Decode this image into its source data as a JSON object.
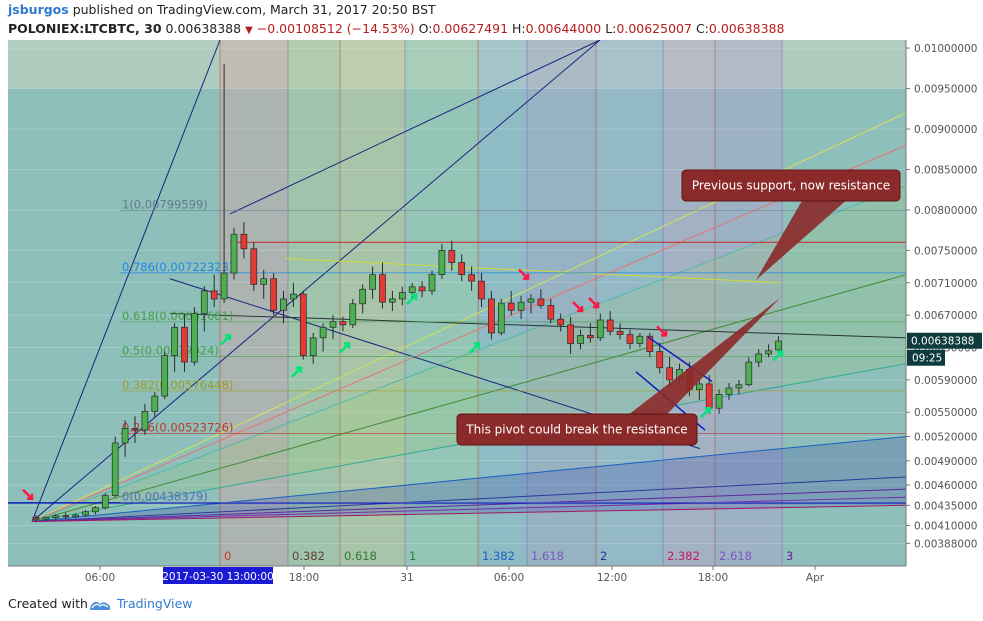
{
  "header": {
    "author": "jsburgos",
    "published_text": "published on TradingView.com, March 31, 2017 20:50 BST",
    "symbol": "POLONIEX:LTCBTC, 30",
    "last": "0.00638388",
    "change": "−0.00108512 (−14.53%)",
    "o_label": "O:",
    "o_value": "0.00627491",
    "h_label": "H:",
    "h_value": "0.00644000",
    "l_label": "L:",
    "l_value": "0.00625007",
    "c_label": "C:",
    "c_value": "0.00638388"
  },
  "footer": {
    "created": "Created with",
    "brand": "TradingView"
  },
  "colors": {
    "bull": "#4caf50",
    "bear": "#e53935",
    "price_tag": "#0d3b3e",
    "time_tag": "#1a1ad4"
  },
  "chart_data": {
    "type": "candlestick",
    "title": "POLONIEX:LTCBTC, 30",
    "y_axis": {
      "ylim": [
        0.0036,
        0.0101
      ],
      "ticks": [
        "0.01000000",
        "0.00950000",
        "0.00900000",
        "0.00850000",
        "0.00800000",
        "0.00750000",
        "0.00710000",
        "0.00670000",
        "0.00630000",
        "0.00590000",
        "0.00550000",
        "0.00520000",
        "0.00490000",
        "0.00460000",
        "0.00435000",
        "0.00410000",
        "0.00388000"
      ]
    },
    "x_axis": {
      "ticks": [
        "06:00",
        "18:00",
        "31",
        "06:00",
        "12:00",
        "18:00",
        "Apr"
      ],
      "highlight": "2017-03-30 13:00:00"
    },
    "last_price": {
      "value": "0.00638388",
      "countdown": "09:25"
    },
    "candles_ohlc": [
      [
        0.0042,
        0.00423,
        0.00414,
        0.00418
      ],
      [
        0.00418,
        0.00421,
        0.00415,
        0.0042
      ],
      [
        0.0042,
        0.00424,
        0.00417,
        0.00422
      ],
      [
        0.00422,
        0.00426,
        0.00418,
        0.00421
      ],
      [
        0.00421,
        0.00425,
        0.00419,
        0.00423
      ],
      [
        0.00423,
        0.00429,
        0.00421,
        0.00427
      ],
      [
        0.00427,
        0.00434,
        0.00424,
        0.00432
      ],
      [
        0.00432,
        0.0045,
        0.0043,
        0.00447
      ],
      [
        0.00447,
        0.0052,
        0.00445,
        0.00512
      ],
      [
        0.00512,
        0.0054,
        0.00495,
        0.0053
      ],
      [
        0.0053,
        0.00545,
        0.00512,
        0.00528
      ],
      [
        0.00528,
        0.0056,
        0.00522,
        0.00551
      ],
      [
        0.00551,
        0.00575,
        0.00544,
        0.0057
      ],
      [
        0.0057,
        0.00625,
        0.00566,
        0.0062
      ],
      [
        0.0062,
        0.0066,
        0.006,
        0.00655
      ],
      [
        0.00655,
        0.00672,
        0.006,
        0.00612
      ],
      [
        0.00612,
        0.0068,
        0.00608,
        0.00672
      ],
      [
        0.00672,
        0.00706,
        0.0065,
        0.007
      ],
      [
        0.007,
        0.0072,
        0.0068,
        0.0069
      ],
      [
        0.0069,
        0.0098,
        0.00685,
        0.00722
      ],
      [
        0.00722,
        0.00778,
        0.00714,
        0.0077
      ],
      [
        0.0077,
        0.00785,
        0.0074,
        0.00752
      ],
      [
        0.00752,
        0.0076,
        0.007,
        0.00708
      ],
      [
        0.00708,
        0.00726,
        0.0069,
        0.00715
      ],
      [
        0.00715,
        0.00722,
        0.0067,
        0.00676
      ],
      [
        0.00676,
        0.007,
        0.0066,
        0.0069
      ],
      [
        0.0069,
        0.0071,
        0.0068,
        0.00696
      ],
      [
        0.00696,
        0.007,
        0.00615,
        0.0062
      ],
      [
        0.0062,
        0.00648,
        0.0061,
        0.00642
      ],
      [
        0.00642,
        0.0066,
        0.00625,
        0.00655
      ],
      [
        0.00655,
        0.0067,
        0.0064,
        0.00662
      ],
      [
        0.00662,
        0.00668,
        0.0065,
        0.00658
      ],
      [
        0.00658,
        0.0069,
        0.00654,
        0.00684
      ],
      [
        0.00684,
        0.00708,
        0.00672,
        0.00702
      ],
      [
        0.00702,
        0.0073,
        0.0069,
        0.0072
      ],
      [
        0.0072,
        0.00735,
        0.00678,
        0.00686
      ],
      [
        0.00686,
        0.007,
        0.00675,
        0.0069
      ],
      [
        0.0069,
        0.00705,
        0.00682,
        0.00698
      ],
      [
        0.00698,
        0.0071,
        0.0069,
        0.00705
      ],
      [
        0.00705,
        0.00712,
        0.00692,
        0.007
      ],
      [
        0.007,
        0.00725,
        0.00695,
        0.0072
      ],
      [
        0.0072,
        0.00758,
        0.00715,
        0.0075
      ],
      [
        0.0075,
        0.00762,
        0.00725,
        0.00735
      ],
      [
        0.00735,
        0.00745,
        0.00712,
        0.0072
      ],
      [
        0.0072,
        0.0073,
        0.007,
        0.00712
      ],
      [
        0.00712,
        0.00722,
        0.0068,
        0.0069
      ],
      [
        0.0069,
        0.007,
        0.0064,
        0.00648
      ],
      [
        0.00648,
        0.0069,
        0.00645,
        0.00685
      ],
      [
        0.00685,
        0.007,
        0.0067,
        0.00676
      ],
      [
        0.00676,
        0.00694,
        0.00665,
        0.00686
      ],
      [
        0.00686,
        0.00696,
        0.00672,
        0.0069
      ],
      [
        0.0069,
        0.00702,
        0.00678,
        0.00682
      ],
      [
        0.00682,
        0.0069,
        0.0066,
        0.00665
      ],
      [
        0.00665,
        0.00672,
        0.0065,
        0.00658
      ],
      [
        0.00658,
        0.00668,
        0.00622,
        0.00635
      ],
      [
        0.00635,
        0.00652,
        0.00628,
        0.00645
      ],
      [
        0.00645,
        0.0066,
        0.00636,
        0.00642
      ],
      [
        0.00642,
        0.00672,
        0.00638,
        0.00664
      ],
      [
        0.00664,
        0.00675,
        0.00645,
        0.0065
      ],
      [
        0.0065,
        0.0066,
        0.0064,
        0.00646
      ],
      [
        0.00646,
        0.00652,
        0.00628,
        0.00635
      ],
      [
        0.00635,
        0.00648,
        0.0063,
        0.00644
      ],
      [
        0.00644,
        0.00648,
        0.00618,
        0.00625
      ],
      [
        0.00625,
        0.00636,
        0.00598,
        0.00605
      ],
      [
        0.00605,
        0.00618,
        0.0058,
        0.0059
      ],
      [
        0.0059,
        0.0061,
        0.00585,
        0.00603
      ],
      [
        0.00603,
        0.00612,
        0.0057,
        0.00578
      ],
      [
        0.00578,
        0.00592,
        0.00565,
        0.00585
      ],
      [
        0.00585,
        0.00596,
        0.00548,
        0.00555
      ],
      [
        0.00555,
        0.00578,
        0.00548,
        0.00572
      ],
      [
        0.00572,
        0.00586,
        0.00565,
        0.0058
      ],
      [
        0.0058,
        0.0059,
        0.00572,
        0.00584
      ],
      [
        0.00584,
        0.00618,
        0.00582,
        0.00612
      ],
      [
        0.00612,
        0.00628,
        0.00606,
        0.00622
      ],
      [
        0.00622,
        0.00634,
        0.00618,
        0.00626
      ],
      [
        0.00627,
        0.00644,
        0.00625,
        0.00638
      ]
    ],
    "fib_retracement": [
      {
        "label": "1(0.00799599)"
      },
      {
        "label": "0.786(0.00722323)"
      },
      {
        "label": "0.618(0.00661681)"
      },
      {
        "label": "0.5(0.00619024)"
      },
      {
        "label": "0.382(0.00576448)"
      },
      {
        "label": "0.236(0.00523726)"
      },
      {
        "label": "0(0.00438379)"
      }
    ],
    "fib_time_zones": [
      "0",
      "0.382",
      "0.618",
      "1",
      "1.382",
      "1.618",
      "2",
      "2.382",
      "2.618",
      "3"
    ],
    "annotations": [
      {
        "text": "Previous support, now resistance"
      },
      {
        "text": "This pivot could break the resistance"
      }
    ],
    "grid": true
  }
}
